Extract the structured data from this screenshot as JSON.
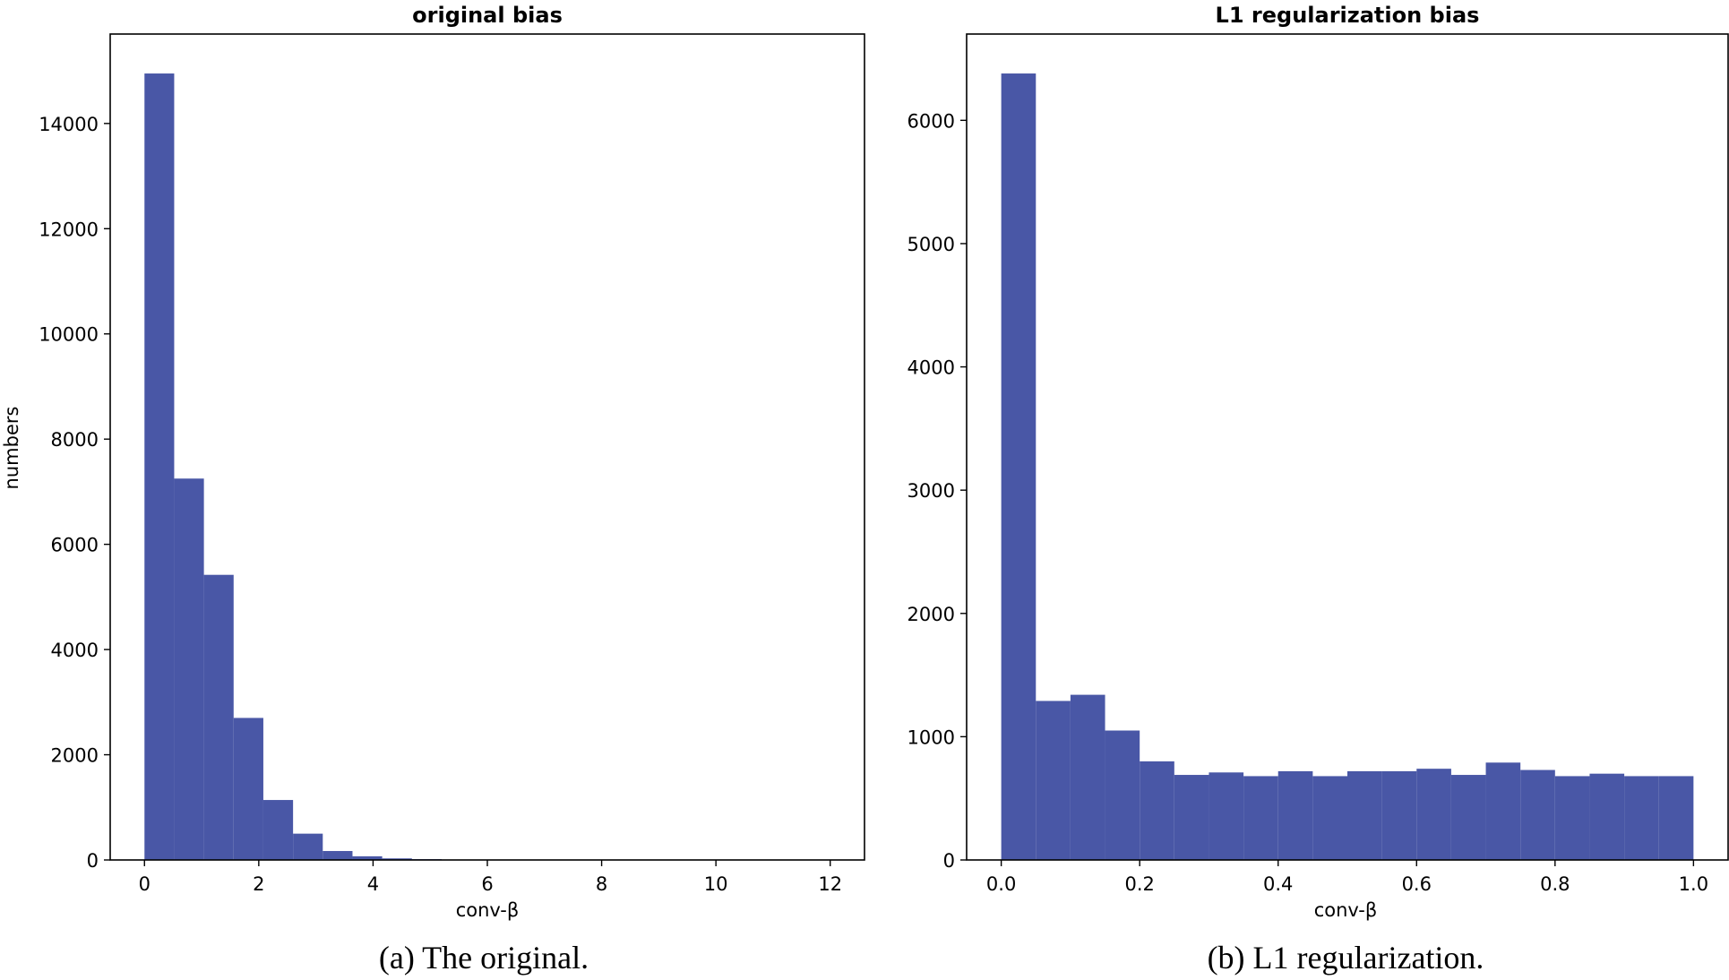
{
  "chart_data": [
    {
      "type": "bar",
      "subtype": "histogram",
      "title": "original bias",
      "xlabel": "conv-β",
      "ylabel": "numbers",
      "xlim": [
        -0.6,
        12.6
      ],
      "ylim": [
        0,
        15700
      ],
      "xticks": [
        0,
        2,
        4,
        6,
        8,
        10,
        12
      ],
      "yticks": [
        0,
        2000,
        4000,
        6000,
        8000,
        10000,
        12000,
        14000
      ],
      "bin_edges": [
        0.0,
        0.52,
        1.04,
        1.56,
        2.08,
        2.6,
        3.12,
        3.64,
        4.16,
        4.68,
        5.2
      ],
      "values": [
        14950,
        7250,
        5420,
        2700,
        1140,
        500,
        170,
        70,
        30,
        15
      ],
      "color": "#4957a6",
      "caption": "(a)  The original."
    },
    {
      "type": "bar",
      "subtype": "histogram",
      "title": "L1 regularization bias",
      "xlabel": "conv-β",
      "ylabel": "",
      "xlim": [
        -0.05,
        1.05
      ],
      "ylim": [
        0,
        6700
      ],
      "xticks": [
        0.0,
        0.2,
        0.4,
        0.6,
        0.8,
        1.0
      ],
      "xtick_labels": [
        "0.0",
        "0.2",
        "0.4",
        "0.6",
        "0.8",
        "1.0"
      ],
      "yticks": [
        0,
        1000,
        2000,
        3000,
        4000,
        5000,
        6000
      ],
      "bin_edges": [
        0.0,
        0.05,
        0.1,
        0.15,
        0.2,
        0.25,
        0.3,
        0.35,
        0.4,
        0.45,
        0.5,
        0.55,
        0.6,
        0.65,
        0.7,
        0.75,
        0.8,
        0.85,
        0.9,
        0.95,
        1.0
      ],
      "values": [
        6380,
        1290,
        1340,
        1050,
        800,
        690,
        710,
        680,
        720,
        680,
        720,
        720,
        740,
        690,
        790,
        730,
        680,
        700,
        680,
        680
      ],
      "color": "#4957a6",
      "caption": "(b)  L1 regularization."
    }
  ]
}
